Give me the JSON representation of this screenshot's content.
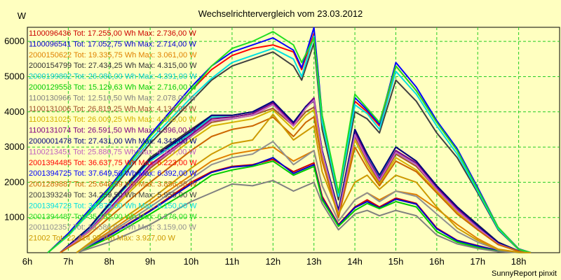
{
  "chart_data": {
    "type": "line",
    "title": "Wechselrichtervergleich vom 23.03.2012",
    "ylabel": "W",
    "xlabel": "",
    "footer": "SunnyReport pinxit",
    "xlim": [
      6,
      19
    ],
    "ylim": [
      0,
      6400
    ],
    "x_ticks": [
      6,
      7,
      8,
      9,
      10,
      11,
      12,
      13,
      14,
      15,
      16,
      17,
      18
    ],
    "x_tick_labels": [
      "6h",
      "7h",
      "8h",
      "9h",
      "10h",
      "11h",
      "12h",
      "13h",
      "14h",
      "15h",
      "16h",
      "17h",
      "18h"
    ],
    "y_ticks": [
      1000,
      2000,
      3000,
      4000,
      5000,
      6000
    ],
    "y_tick_labels": [
      "1000",
      "2000",
      "3000",
      "4000",
      "5000",
      "6000"
    ],
    "grid": true,
    "legend_position": "top-left",
    "series": [
      {
        "name": "1100096436",
        "legend": "1100096436 Tot: 17.255,00 Wh Max: 2.736,00 W",
        "color": "#cc0000",
        "x": [
          7.2,
          8,
          9,
          10,
          10.5,
          11,
          11.5,
          12,
          12.5,
          13,
          13.2,
          13.6,
          14,
          14.3,
          14.6,
          15,
          15.5,
          16,
          16.5,
          17,
          17.5,
          18,
          18.3
        ],
        "y": [
          0,
          500,
          1200,
          2000,
          2300,
          2450,
          2500,
          2650,
          2300,
          2550,
          1600,
          800,
          1300,
          1500,
          1300,
          1550,
          1400,
          700,
          350,
          200,
          60,
          10,
          0
        ]
      },
      {
        "name": "1100096541",
        "legend": "1100096541 Tot: 17.052,75 Wh Max: 2.714,00 W",
        "color": "#0000cc",
        "x": [
          7.2,
          8,
          9,
          10,
          10.5,
          11,
          11.5,
          12,
          12.5,
          13,
          13.2,
          13.6,
          14,
          14.3,
          14.6,
          15,
          15.5,
          16,
          16.5,
          17,
          17.5,
          18,
          18.3
        ],
        "y": [
          0,
          480,
          1180,
          1950,
          2280,
          2430,
          2480,
          2700,
          2250,
          2500,
          1550,
          780,
          1280,
          1450,
          1270,
          1520,
          1380,
          680,
          340,
          190,
          55,
          10,
          0
        ]
      },
      {
        "name": "2000150622",
        "legend": "2000150622 Tot: 19.335,75 Wh Max: 3.061,00 W",
        "color": "#e08000",
        "x": [
          7.2,
          8,
          9,
          10,
          10.5,
          11,
          11.5,
          12,
          12.5,
          13,
          13.2,
          13.6,
          14,
          14.3,
          14.6,
          15,
          15.5,
          16,
          16.5,
          17,
          17.5,
          18,
          18.3
        ],
        "y": [
          0,
          600,
          1400,
          2200,
          2600,
          2800,
          2900,
          3000,
          2600,
          2900,
          1900,
          900,
          1500,
          1700,
          1500,
          1750,
          1650,
          1250,
          800,
          400,
          100,
          15,
          0
        ]
      },
      {
        "name": "2000154799",
        "legend": "2000154799 Tot: 27.434,25 Wh Max: 4.315,00 W",
        "color": "#333333",
        "x": [
          6.8,
          7.5,
          8,
          9,
          10,
          10.5,
          11,
          11.5,
          12,
          12.5,
          12.8,
          13,
          13.2,
          13.6,
          14,
          14.3,
          14.6,
          15,
          15.5,
          16,
          16.5,
          17,
          17.5,
          18,
          18.3
        ],
        "y": [
          0,
          700,
          1400,
          2700,
          3500,
          3900,
          3900,
          4000,
          4250,
          3700,
          4150,
          4300,
          2900,
          1200,
          3500,
          2800,
          2200,
          3000,
          2600,
          1900,
          1300,
          800,
          300,
          50,
          0
        ]
      },
      {
        "name": "2000199892",
        "legend": "2000199892 Tot: 26.086,00 Wh Max: 4.391,00 W",
        "color": "#00cccc",
        "x": [
          6.8,
          7.5,
          8,
          9,
          10,
          10.5,
          11,
          11.5,
          12,
          12.5,
          12.8,
          13,
          13.2,
          13.6,
          14,
          14.3,
          14.6,
          15,
          15.5,
          16,
          16.5,
          17,
          17.5,
          18,
          18.3
        ],
        "y": [
          0,
          680,
          1350,
          2600,
          3400,
          3850,
          3850,
          3950,
          4300,
          3650,
          4100,
          4380,
          2850,
          1150,
          3400,
          2750,
          2150,
          2900,
          2500,
          1850,
          1250,
          750,
          280,
          45,
          0
        ]
      },
      {
        "name": "2000129553",
        "legend": "2000129553 Tot: 15.129,63 Wh Max: 2.716,00 W",
        "color": "#00cc00",
        "x": [
          7.2,
          8,
          9,
          10,
          10.5,
          11,
          11.5,
          12,
          12.5,
          13,
          13.2,
          13.6,
          14,
          14.3,
          14.6,
          15,
          15.5,
          16,
          16.5,
          17,
          17.5,
          18,
          18.3
        ],
        "y": [
          0,
          420,
          1100,
          1800,
          2200,
          2350,
          2450,
          2600,
          2200,
          2450,
          1500,
          750,
          1200,
          1400,
          1250,
          1450,
          1300,
          600,
          300,
          150,
          40,
          5,
          0
        ]
      },
      {
        "name": "1100130966",
        "legend": "1100130966 Tot: 12.510,50 Wh Max: 2.078,00 W",
        "color": "#808080",
        "x": [
          7.2,
          8,
          9,
          10,
          10.5,
          11,
          11.5,
          12,
          12.5,
          13,
          13.2,
          13.6,
          14,
          14.3,
          14.6,
          15,
          15.5,
          16,
          16.5,
          17,
          17.5,
          18,
          18.3
        ],
        "y": [
          0,
          300,
          800,
          1450,
          1700,
          1950,
          1900,
          2050,
          1750,
          2000,
          1400,
          650,
          1100,
          1200,
          1050,
          1200,
          1050,
          500,
          250,
          120,
          30,
          5,
          0
        ]
      },
      {
        "name": "1100131006",
        "legend": "1100131006 Tot: 26.819,25 Wh Max: 4.134,00 W",
        "color": "#a0522d",
        "x": [
          6.8,
          7.5,
          8,
          9,
          10,
          10.5,
          11,
          11.5,
          12,
          12.5,
          12.8,
          13,
          13.2,
          13.6,
          14,
          14.3,
          14.6,
          15,
          15.5,
          16,
          16.5,
          17,
          17.5,
          18,
          18.3
        ],
        "y": [
          0,
          600,
          1200,
          2400,
          3300,
          3700,
          3800,
          3900,
          4100,
          3600,
          4000,
          4130,
          2800,
          1100,
          3300,
          2600,
          2000,
          2800,
          2450,
          1800,
          1200,
          700,
          250,
          40,
          0
        ]
      },
      {
        "name": "1100131025",
        "legend": "1100131025 Tot: 26.009,25 Wh Max: 4.060,00 W",
        "color": "#d4b000",
        "x": [
          6.8,
          7.5,
          8,
          9,
          10,
          10.5,
          11,
          11.5,
          12,
          12.5,
          12.8,
          13,
          13.2,
          13.6,
          14,
          14.3,
          14.6,
          15,
          15.5,
          16,
          16.5,
          17,
          17.5,
          18,
          18.3
        ],
        "y": [
          0,
          580,
          1150,
          2300,
          3200,
          3600,
          3700,
          3800,
          4050,
          3500,
          3900,
          4060,
          2750,
          1050,
          3200,
          2500,
          1950,
          2700,
          2350,
          1750,
          1150,
          680,
          240,
          40,
          0
        ]
      },
      {
        "name": "1100131074",
        "legend": "1100131074 Tot: 26.591,50 Wh Max: 4.396,00 W",
        "color": "#800080",
        "x": [
          6.8,
          7.5,
          8,
          9,
          10,
          10.5,
          11,
          11.5,
          12,
          12.5,
          12.8,
          13,
          13.2,
          13.6,
          14,
          14.3,
          14.6,
          15,
          15.5,
          16,
          16.5,
          17,
          17.5,
          18,
          18.3
        ],
        "y": [
          0,
          620,
          1250,
          2500,
          3350,
          3800,
          3850,
          3950,
          4250,
          3650,
          4150,
          4396,
          2900,
          1150,
          3450,
          2700,
          2100,
          2900,
          2550,
          1850,
          1250,
          720,
          260,
          45,
          0
        ]
      },
      {
        "name": "2000001478",
        "legend": "2000001478 Tot: 27.431,00 Wh Max: 4.342,00 W",
        "color": "#000080",
        "x": [
          6.8,
          7.5,
          8,
          9,
          10,
          10.5,
          11,
          11.5,
          12,
          12.5,
          12.8,
          13,
          13.2,
          13.6,
          14,
          14.3,
          14.6,
          15,
          15.5,
          16,
          16.5,
          17,
          17.5,
          18,
          18.3
        ],
        "y": [
          0,
          700,
          1380,
          2650,
          3450,
          3900,
          3900,
          4000,
          4300,
          3700,
          4150,
          4342,
          2900,
          1200,
          3500,
          2800,
          2200,
          3000,
          2600,
          1900,
          1300,
          780,
          290,
          50,
          0
        ]
      },
      {
        "name": "1100213451",
        "legend": "1100213451 Tot: 25.880,75 Wh Max: 4.337,00 W",
        "color": "#c060c0",
        "x": [
          6.8,
          7.5,
          8,
          9,
          10,
          10.5,
          11,
          11.5,
          12,
          12.5,
          12.8,
          13,
          13.2,
          13.6,
          14,
          14.3,
          14.6,
          15,
          15.5,
          16,
          16.5,
          17,
          17.5,
          18,
          18.3
        ],
        "y": [
          0,
          600,
          1200,
          2450,
          3300,
          3750,
          3800,
          3900,
          4200,
          3600,
          4100,
          4337,
          2850,
          1100,
          3350,
          2650,
          2050,
          2850,
          2500,
          1800,
          1200,
          700,
          250,
          40,
          0
        ]
      },
      {
        "name": "2001394485",
        "legend": "2001394485 Tot: 36.637,75 Wh Max: 6.223,00 W",
        "color": "#ff0000",
        "x": [
          6.5,
          7,
          8,
          9,
          10,
          10.5,
          11,
          11.5,
          12,
          12.5,
          12.7,
          13,
          13.2,
          13.6,
          14,
          14.3,
          14.6,
          15,
          15.5,
          16,
          16.5,
          17,
          17.5,
          18,
          18.3
        ],
        "y": [
          0,
          500,
          1800,
          3300,
          4600,
          5200,
          5600,
          5800,
          5900,
          5700,
          5200,
          6223,
          3800,
          1600,
          4300,
          4000,
          3600,
          5300,
          4600,
          3700,
          2900,
          1800,
          700,
          100,
          0
        ]
      },
      {
        "name": "2001394725",
        "legend": "2001394725 Tot: 37.649,50 Wh Max: 6.392,00 W",
        "color": "#0000ff",
        "x": [
          6.5,
          7,
          8,
          9,
          10,
          10.5,
          11,
          11.5,
          12,
          12.5,
          12.7,
          13,
          13.2,
          13.6,
          14,
          14.3,
          14.6,
          15,
          15.5,
          16,
          16.5,
          17,
          17.5,
          18,
          18.3
        ],
        "y": [
          0,
          550,
          1850,
          3350,
          4700,
          5300,
          5700,
          5900,
          6100,
          5750,
          5250,
          6392,
          3900,
          1650,
          4400,
          4050,
          3650,
          5400,
          4700,
          3750,
          2950,
          1850,
          720,
          110,
          0
        ]
      },
      {
        "name": "2001289887",
        "legend": "2001289887 Tot: 25.648,59 Wh Max: 3.856,38 W",
        "color": "#cc6600",
        "x": [
          6.8,
          7.5,
          8,
          9,
          10,
          10.5,
          11,
          11.5,
          12,
          12.5,
          12.8,
          13,
          13.2,
          13.6,
          14,
          14.3,
          14.6,
          15,
          15.5,
          16,
          16.5,
          17,
          17.5,
          18,
          18.3
        ],
        "y": [
          0,
          500,
          1000,
          2000,
          2900,
          3300,
          3500,
          3600,
          3850,
          3300,
          3700,
          3856,
          2600,
          1000,
          3000,
          2400,
          1900,
          2600,
          2300,
          1700,
          1100,
          650,
          230,
          40,
          0
        ]
      },
      {
        "name": "2001393249",
        "legend": "2001393249 Tot: 34.259,50 Wh Max: 5.955,00 W",
        "color": "#404040",
        "x": [
          6.5,
          7,
          8,
          9,
          10,
          10.5,
          11,
          11.5,
          12,
          12.5,
          12.7,
          13,
          13.2,
          13.6,
          14,
          14.3,
          14.6,
          15,
          15.5,
          16,
          16.5,
          17,
          17.5,
          18,
          18.3
        ],
        "y": [
          0,
          500,
          1700,
          3100,
          4300,
          4900,
          5300,
          5500,
          5700,
          5300,
          4900,
          5955,
          3500,
          1500,
          4000,
          3800,
          3400,
          4900,
          4300,
          3400,
          2700,
          1700,
          650,
          90,
          0
        ]
      },
      {
        "name": "2001394723",
        "legend": "2001394723 Tot: 34.873,00 Wh Max: 6.150,00 W",
        "color": "#00e0e0",
        "x": [
          6.5,
          7,
          8,
          9,
          10,
          10.5,
          11,
          11.5,
          12,
          12.5,
          12.7,
          13,
          13.2,
          13.6,
          14,
          14.3,
          14.6,
          15,
          15.5,
          16,
          16.5,
          17,
          17.5,
          18,
          18.3
        ],
        "y": [
          0,
          480,
          1750,
          3200,
          4400,
          4950,
          5400,
          5600,
          5800,
          5500,
          5000,
          6150,
          3700,
          1600,
          4200,
          3950,
          3500,
          5150,
          4500,
          3600,
          2800,
          1750,
          680,
          95,
          0
        ]
      },
      {
        "name": "2001394487",
        "legend": "2001394487 Tot: 35.752,00 Wh Max: 6.276,00 W",
        "color": "#22dd22",
        "x": [
          6.5,
          7,
          8,
          9,
          10,
          10.5,
          11,
          11.5,
          12,
          12.5,
          12.7,
          13,
          13.2,
          13.6,
          14,
          14.3,
          14.6,
          15,
          15.5,
          16,
          16.5,
          17,
          17.5,
          18,
          18.3
        ],
        "y": [
          0,
          500,
          1800,
          3300,
          4600,
          5300,
          5800,
          6000,
          6276,
          5900,
          5400,
          6100,
          3900,
          1700,
          4500,
          4100,
          3700,
          5300,
          4600,
          3700,
          2900,
          1800,
          720,
          100,
          0
        ]
      },
      {
        "name": "2001102357",
        "legend": "2001102357 Tot: 19.586,00 Wh Max: 3.159,00 W",
        "color": "#909090",
        "x": [
          7.2,
          8,
          9,
          10,
          10.5,
          11,
          11.5,
          12,
          12.5,
          13,
          13.2,
          13.6,
          14,
          14.3,
          14.6,
          15,
          15.5,
          16,
          16.5,
          17,
          17.5,
          18,
          18.3
        ],
        "y": [
          0,
          550,
          1300,
          2100,
          2500,
          2700,
          2800,
          3159,
          2500,
          2900,
          1900,
          900,
          1500,
          1700,
          1450,
          1750,
          1600,
          1100,
          600,
          300,
          80,
          10,
          0
        ]
      },
      {
        "name": "21002",
        "legend": "21002 Tot: 22.414,97 Wh Max: 3.927,00 W",
        "color": "#cc9900",
        "x": [
          7.2,
          8,
          9,
          10,
          10.5,
          11,
          11.5,
          12,
          12.5,
          13,
          13.2,
          13.6,
          14,
          14.3,
          14.6,
          15,
          15.5,
          16,
          16.5,
          17,
          17.5,
          18,
          18.3
        ],
        "y": [
          0,
          700,
          1500,
          2400,
          2800,
          3100,
          3200,
          3927,
          3200,
          3600,
          2300,
          1100,
          2000,
          2200,
          1800,
          2200,
          2000,
          1300,
          700,
          350,
          90,
          10,
          0
        ]
      }
    ]
  }
}
